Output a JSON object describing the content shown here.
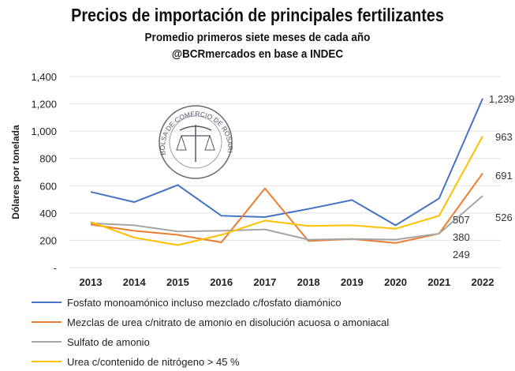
{
  "chart_data": {
    "type": "line",
    "title": "Precios de importación de principales fertilizantes",
    "subtitle": "Promedio primeros siete meses de cada año",
    "source": "@BCRmercados en base a INDEC",
    "ylabel": "Dólares por tonelada",
    "xlabel": "",
    "ylim": [
      0,
      1400
    ],
    "yticks": [
      "-",
      "200",
      "400",
      "600",
      "800",
      "1,000",
      "1,200",
      "1,400"
    ],
    "grid": true,
    "legend_position": "bottom",
    "categories": [
      "2013",
      "2014",
      "2015",
      "2016",
      "2017",
      "2018",
      "2019",
      "2020",
      "2021",
      "2022"
    ],
    "series": [
      {
        "name": "Fosfato monoamónico incluso mezclado c/fosfato diamónico",
        "color": "#4472c4",
        "values": [
          555,
          480,
          605,
          380,
          370,
          430,
          495,
          310,
          507,
          1239
        ]
      },
      {
        "name": "Mezclas de urea c/nitrato de amonio en disolución acuosa o amoniacal",
        "color": "#ed7d31",
        "values": [
          315,
          270,
          240,
          185,
          580,
          195,
          210,
          180,
          249,
          691
        ]
      },
      {
        "name": "Sulfato de amonio",
        "color": "#a5a5a5",
        "values": [
          325,
          310,
          265,
          270,
          280,
          205,
          210,
          205,
          249,
          526
        ]
      },
      {
        "name": "Urea c/contenido de nitrógeno > 45 %",
        "color": "#ffc000",
        "values": [
          335,
          220,
          165,
          240,
          345,
          305,
          310,
          285,
          380,
          963
        ]
      }
    ],
    "data_labels": [
      {
        "year": "2021",
        "text": "507"
      },
      {
        "year": "2021",
        "text": "380"
      },
      {
        "year": "2021",
        "text": "249"
      },
      {
        "year": "2022",
        "text": "1,239"
      },
      {
        "year": "2022",
        "text": "963"
      },
      {
        "year": "2022",
        "text": "691"
      },
      {
        "year": "2022",
        "text": "526"
      }
    ]
  },
  "logo": {
    "text": "BOLSA DE COMERCIO DE ROSARIO"
  }
}
